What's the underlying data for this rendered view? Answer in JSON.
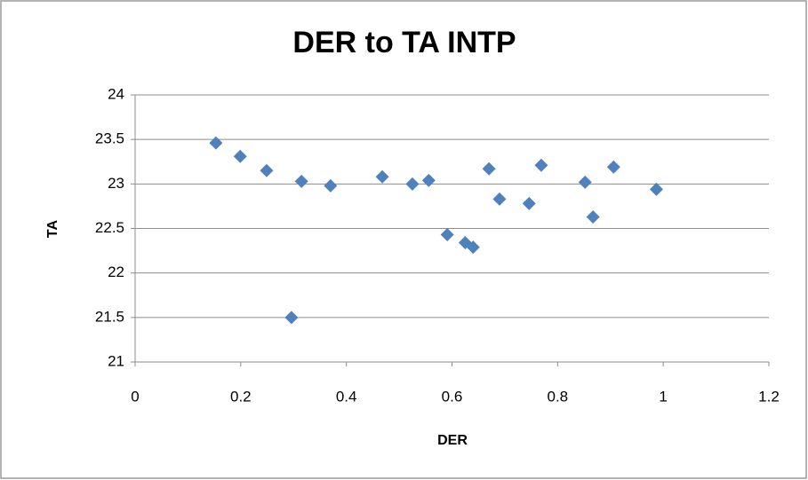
{
  "chart_data": {
    "type": "scatter",
    "title": "DER to TA INTP",
    "x_label": "DER",
    "y_label": "TA",
    "series": [
      {
        "name": "TA",
        "color": "#4f81bd",
        "x": [
          0.153,
          0.199,
          0.249,
          0.315,
          0.37,
          0.468,
          0.525,
          0.556,
          0.591,
          0.625,
          0.64,
          0.67,
          0.69,
          0.746,
          0.769,
          0.852,
          0.867,
          0.906,
          0.987,
          0.296
        ],
        "values": [
          23.46,
          23.31,
          23.15,
          23.03,
          22.98,
          23.08,
          23.0,
          23.04,
          22.43,
          22.34,
          22.29,
          23.17,
          22.83,
          22.78,
          23.21,
          23.02,
          22.63,
          23.19,
          22.94,
          21.5
        ]
      }
    ],
    "xlim": [
      0,
      1.2
    ],
    "xticks": [
      0,
      0.2,
      0.4,
      0.6,
      0.8,
      1,
      1.2
    ],
    "ylim": [
      21,
      24
    ],
    "yticks": [
      21,
      21.5,
      22,
      22.5,
      23,
      23.5,
      24
    ],
    "grid": true
  }
}
